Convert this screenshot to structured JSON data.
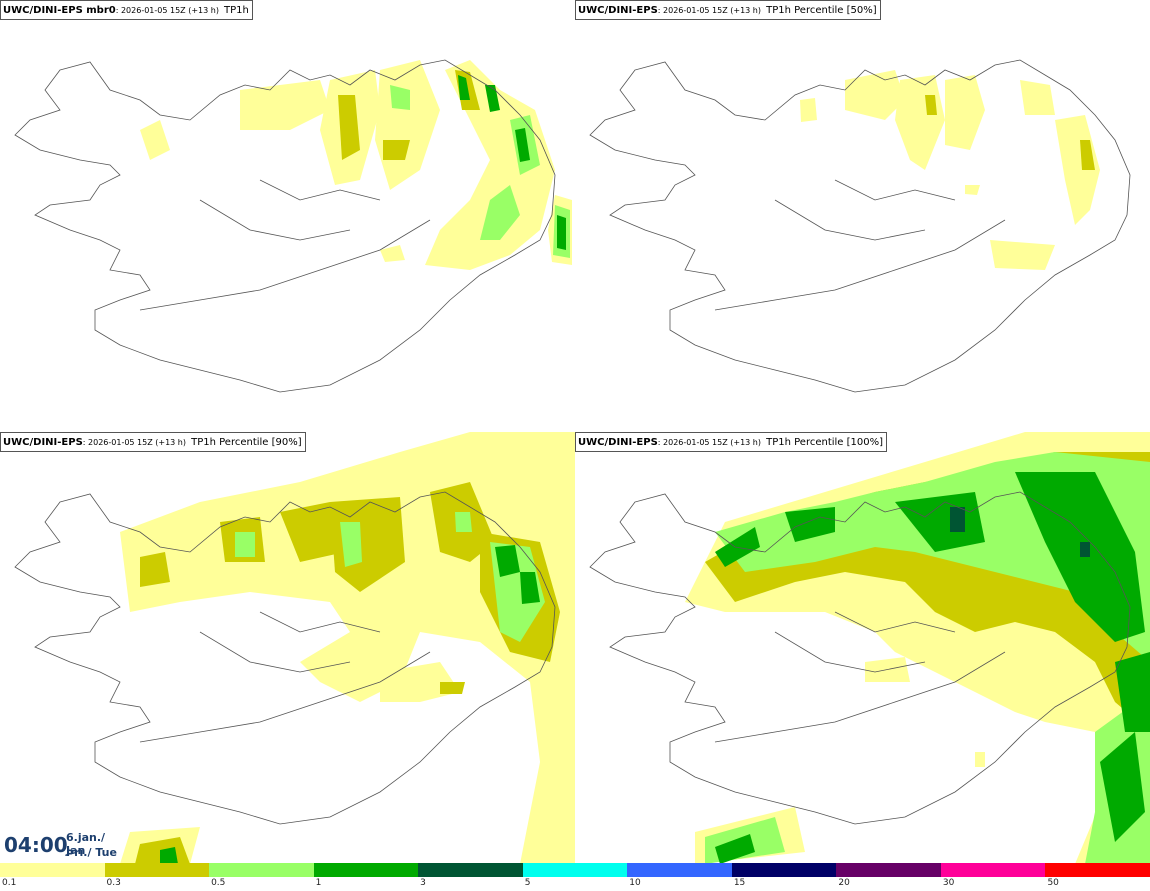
{
  "panels": [
    {
      "source": "UWC/DINI-EPS mbr0",
      "date": "2026-01-05 15Z (+13 h)",
      "variable": "TP1h"
    },
    {
      "source": "UWC/DINI-EPS",
      "date": "2026-01-05 15Z (+13 h)",
      "variable": "TP1h Percentile [50%]"
    },
    {
      "source": "UWC/DINI-EPS",
      "date": "2026-01-05 15Z (+13 h)",
      "variable": "TP1h Percentile [90%]"
    },
    {
      "source": "UWC/DINI-EPS",
      "date": "2026-01-05 15Z (+13 h)",
      "variable": "TP1h Percentile [100%]"
    }
  ],
  "time": {
    "clock": "04:00",
    "line1": "6.jan./ Jan",
    "line2": "Þri./ Tue"
  },
  "colorbar": {
    "colors": [
      "#ffff99",
      "#cccc00",
      "#99ff66",
      "#00aa00",
      "#005533",
      "#00ffee",
      "#3366ff",
      "#000066",
      "#660066",
      "#ff0099",
      "#ff0000"
    ],
    "ticks": [
      "0.1",
      "0.3",
      "0.5",
      "1",
      "3",
      "5",
      "10",
      "15",
      "20",
      "30",
      "50"
    ]
  },
  "colors": {
    "light": "#ffff99",
    "olive": "#cccc00",
    "lightgreen": "#99ff66",
    "green": "#00aa00",
    "dark": "#005533",
    "outline": "#555555"
  }
}
